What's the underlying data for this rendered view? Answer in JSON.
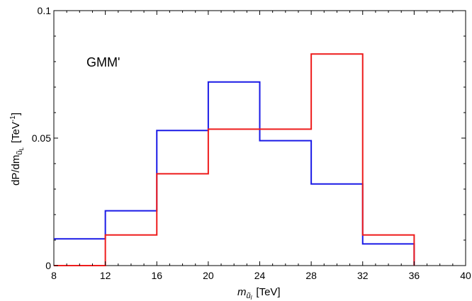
{
  "chart_data": {
    "type": "line",
    "step": "histogram",
    "annotation": "GMM'",
    "xlabel": {
      "main": "m",
      "sub": "ũ",
      "subsub": "l",
      "unit": "[TeV]"
    },
    "ylabel": {
      "main": "dP/dm",
      "sub": "ũ",
      "subsub": "L",
      "unit_pre": "[TeV",
      "unit_sup": "-1",
      "unit_post": "]"
    },
    "xlim": [
      8,
      40
    ],
    "ylim": [
      0,
      0.1
    ],
    "xticks": [
      8,
      12,
      16,
      20,
      24,
      28,
      32,
      36,
      40
    ],
    "xtick_labels": [
      "8",
      "12",
      "16",
      "20",
      "24",
      "28",
      "32",
      "36",
      "40"
    ],
    "yticks": [
      0,
      0.05,
      0.1
    ],
    "ytick_labels": [
      "0",
      "0.05",
      "0.1"
    ],
    "grid": false,
    "bin_edges": [
      8,
      12,
      16,
      20,
      24,
      28,
      32,
      36
    ],
    "series": [
      {
        "color": "#1a1ae6",
        "values": [
          0.0105,
          0.0215,
          0.053,
          0.072,
          0.049,
          0.032,
          0.0085
        ]
      },
      {
        "color": "#ee1c1c",
        "values": [
          0.0,
          0.012,
          0.036,
          0.0535,
          0.0535,
          0.083,
          0.012
        ]
      }
    ]
  }
}
